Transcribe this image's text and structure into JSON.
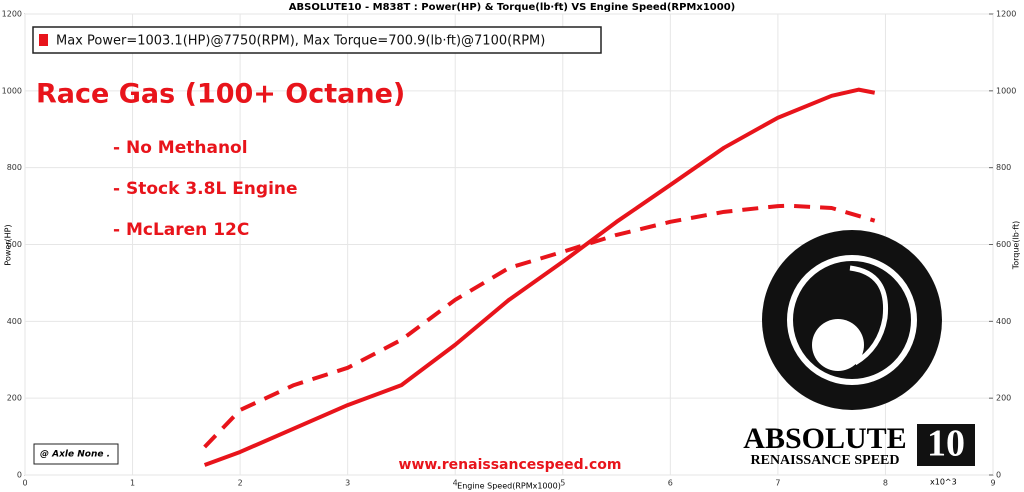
{
  "chart_data": {
    "type": "line",
    "title": "ABSOLUTE10 - M838T : Power(HP) & Torque(lb·ft) VS Engine Speed(RPMx1000)",
    "x_label": "Engine Speed(RPMx1000)",
    "x_multiplier": "x10^3",
    "y_label": "Power(HP)",
    "y2_label": "Torque(lb·ft)",
    "legend_text": "Max Power=1003.1(HP)@7750(RPM), Max Torque=700.9(lb·ft)@7100(RPM)",
    "headline": "Race Gas (100+ Octane)",
    "notes": [
      "- No Methanol",
      "- Stock 3.8L Engine",
      "- McLaren 12C"
    ],
    "axle_note": "@ Axle None .",
    "website": "www.renaissancespeed.com",
    "logo_title": "ABSOLUTE",
    "logo_number": "10",
    "logo_subtitle": "RENAISSANCE SPEED",
    "xlim": [
      0,
      9
    ],
    "xticks": [
      0,
      1,
      2,
      3,
      4,
      5,
      6,
      7,
      8,
      9
    ],
    "ylim": [
      0,
      1200
    ],
    "yticks": [
      0,
      200,
      400,
      600,
      800,
      1000,
      1200
    ],
    "y2lim": [
      0,
      1200
    ],
    "y2ticks": [
      0,
      200,
      400,
      600,
      800,
      1000,
      1200
    ],
    "grid": true,
    "series": [
      {
        "color": "#e8141b",
        "line_style": "solid",
        "axis": "y",
        "x": [
          1.67,
          2.0,
          3.0,
          3.5,
          4.0,
          4.5,
          5.0,
          5.5,
          6.0,
          6.5,
          7.0,
          7.5,
          7.75,
          7.9
        ],
        "values": [
          26,
          60,
          182,
          234,
          339,
          456,
          555,
          659,
          755,
          852,
          930,
          987,
          1003.1,
          995
        ]
      },
      {
        "color": "#e8141b",
        "line_style": "dashed",
        "axis": "y2",
        "x": [
          1.67,
          2.0,
          2.5,
          3.0,
          3.5,
          4.0,
          4.5,
          5.0,
          5.5,
          6.0,
          6.5,
          7.0,
          7.1,
          7.5,
          7.9
        ],
        "values": [
          73,
          169,
          234,
          279,
          352,
          456,
          539,
          581,
          625,
          659,
          685,
          700,
          700.9,
          695,
          662
        ]
      }
    ]
  }
}
